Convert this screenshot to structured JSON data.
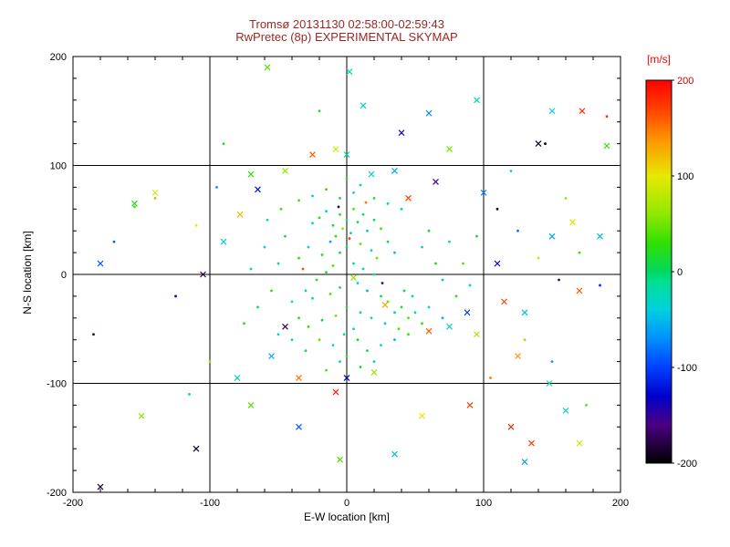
{
  "page": {
    "background": "#ffffff"
  },
  "chart_data": {
    "type": "scatter",
    "title_line1": "Tromsø 20131130 02:58:00-02:59:43",
    "title_line2": "RwPretec (8p) EXPERIMENTAL SKYMAP",
    "title_color": "#992822",
    "xlabel": "E-W location [km]",
    "ylabel": "N-S location [km]",
    "axis_color": "#000000",
    "grid_color": "#000000",
    "xlim": [
      -200,
      200
    ],
    "ylim": [
      -200,
      200
    ],
    "x_ticks": [
      -200,
      -100,
      0,
      100,
      200
    ],
    "y_ticks": [
      -200,
      -100,
      0,
      100,
      200
    ],
    "gridlines": [
      -100,
      0,
      100
    ],
    "colorbar": {
      "label": "[m/s]",
      "label_color": "#ff0000",
      "min": -200,
      "max": 200,
      "ticks": [
        200,
        100,
        0,
        -100,
        -200
      ],
      "tick_colors": [
        "#cc0000",
        "#000000",
        "#000000",
        "#000000",
        "#000000"
      ]
    },
    "colormap_stops": [
      [
        -200,
        "#000000"
      ],
      [
        -160,
        "#4b0082"
      ],
      [
        -130,
        "#0000cc"
      ],
      [
        -100,
        "#0040ff"
      ],
      [
        -70,
        "#0090ff"
      ],
      [
        -40,
        "#00d0e0"
      ],
      [
        -10,
        "#00e090"
      ],
      [
        0,
        "#00d860"
      ],
      [
        30,
        "#30e000"
      ],
      [
        60,
        "#90e800"
      ],
      [
        100,
        "#e8e800"
      ],
      [
        140,
        "#ff9000"
      ],
      [
        170,
        "#ff4000"
      ],
      [
        200,
        "#ff0000"
      ]
    ],
    "point_format": "[x_km, y_km, velocity_mps, marker(0=dot,1=cross)]",
    "points": [
      [
        -5,
        55,
        20,
        0
      ],
      [
        0,
        50,
        -10,
        0
      ],
      [
        5,
        60,
        40,
        0
      ],
      [
        -10,
        45,
        10,
        0
      ],
      [
        -15,
        58,
        -30,
        0
      ],
      [
        8,
        48,
        15,
        0
      ],
      [
        12,
        55,
        5,
        0
      ],
      [
        -3,
        42,
        60,
        0
      ],
      [
        3,
        38,
        -20,
        0
      ],
      [
        -8,
        35,
        30,
        0
      ],
      [
        15,
        40,
        -45,
        0
      ],
      [
        20,
        50,
        10,
        0
      ],
      [
        -20,
        52,
        25,
        0
      ],
      [
        -25,
        47,
        -15,
        0
      ],
      [
        25,
        42,
        35,
        0
      ],
      [
        -12,
        30,
        -60,
        0
      ],
      [
        10,
        28,
        45,
        0
      ],
      [
        0,
        25,
        -5,
        0
      ],
      [
        -5,
        20,
        15,
        0
      ],
      [
        18,
        22,
        -35,
        0
      ],
      [
        -18,
        18,
        20,
        0
      ],
      [
        22,
        15,
        50,
        0
      ],
      [
        -28,
        25,
        -25,
        0
      ],
      [
        30,
        30,
        10,
        0
      ],
      [
        35,
        20,
        -50,
        0
      ],
      [
        -35,
        15,
        30,
        0
      ],
      [
        5,
        10,
        -15,
        0
      ],
      [
        -10,
        8,
        40,
        0
      ],
      [
        12,
        5,
        -30,
        0
      ],
      [
        -15,
        2,
        10,
        0
      ],
      [
        20,
        0,
        -20,
        0
      ],
      [
        -22,
        -5,
        25,
        0
      ],
      [
        8,
        -8,
        -40,
        0
      ],
      [
        -5,
        -12,
        15,
        0
      ],
      [
        15,
        -15,
        -55,
        0
      ],
      [
        -12,
        -18,
        35,
        0
      ],
      [
        25,
        -20,
        5,
        0
      ],
      [
        -25,
        -22,
        -10,
        0
      ],
      [
        30,
        -25,
        45,
        0
      ],
      [
        -30,
        -15,
        -35,
        0
      ],
      [
        0,
        -30,
        20,
        0
      ],
      [
        10,
        -35,
        -25,
        0
      ],
      [
        -8,
        -38,
        50,
        0
      ],
      [
        18,
        -40,
        -15,
        0
      ],
      [
        -18,
        -42,
        10,
        0
      ],
      [
        28,
        -45,
        -45,
        0
      ],
      [
        -28,
        -48,
        30,
        0
      ],
      [
        35,
        -35,
        -5,
        0
      ],
      [
        -35,
        -40,
        20,
        0
      ],
      [
        5,
        -50,
        -30,
        0
      ],
      [
        40,
        -30,
        15,
        0
      ],
      [
        -40,
        -25,
        -20,
        0
      ],
      [
        45,
        -40,
        40,
        0
      ],
      [
        50,
        -35,
        -10,
        0
      ],
      [
        55,
        -45,
        25,
        0
      ],
      [
        60,
        -30,
        -40,
        0
      ],
      [
        42,
        -15,
        10,
        0
      ],
      [
        48,
        -20,
        -25,
        0
      ],
      [
        38,
        -50,
        35,
        0
      ],
      [
        -2,
        -55,
        -15,
        0
      ],
      [
        8,
        -60,
        20,
        0
      ],
      [
        -10,
        -65,
        -35,
        0
      ],
      [
        15,
        -70,
        10,
        0
      ],
      [
        -20,
        -60,
        45,
        0
      ],
      [
        25,
        -65,
        -20,
        0
      ],
      [
        -30,
        -70,
        15,
        0
      ],
      [
        35,
        -60,
        -50,
        0
      ],
      [
        45,
        -55,
        30,
        0
      ],
      [
        -40,
        -60,
        -10,
        0
      ],
      [
        0,
        -75,
        25,
        0
      ],
      [
        -5,
        -80,
        -30,
        0
      ],
      [
        10,
        -85,
        15,
        0
      ],
      [
        20,
        -80,
        -5,
        0
      ],
      [
        -15,
        -88,
        40,
        0
      ],
      [
        -5,
        70,
        10,
        0
      ],
      [
        5,
        75,
        -25,
        0
      ],
      [
        -15,
        78,
        30,
        0
      ],
      [
        10,
        82,
        -10,
        0
      ],
      [
        0,
        88,
        20,
        0
      ],
      [
        -25,
        72,
        -40,
        0
      ],
      [
        20,
        70,
        15,
        0
      ],
      [
        30,
        65,
        -20,
        0
      ],
      [
        -35,
        68,
        35,
        0
      ],
      [
        40,
        60,
        -15,
        0
      ],
      [
        2,
        33,
        170,
        0
      ],
      [
        -6,
        62,
        -175,
        0
      ],
      [
        14,
        66,
        150,
        0
      ],
      [
        26,
        -8,
        -160,
        0
      ],
      [
        -32,
        5,
        165,
        0
      ],
      [
        55,
        25,
        -30,
        0
      ],
      [
        65,
        10,
        20,
        0
      ],
      [
        70,
        -5,
        -45,
        0
      ],
      [
        60,
        40,
        10,
        0
      ],
      [
        75,
        30,
        -10,
        0
      ],
      [
        80,
        -20,
        25,
        0
      ],
      [
        70,
        -40,
        -55,
        0
      ],
      [
        85,
        10,
        40,
        0
      ],
      [
        90,
        -10,
        -25,
        0
      ],
      [
        95,
        35,
        15,
        0
      ],
      [
        -50,
        10,
        -20,
        0
      ],
      [
        -55,
        -15,
        30,
        0
      ],
      [
        -60,
        25,
        -40,
        0
      ],
      [
        -65,
        -30,
        10,
        0
      ],
      [
        -70,
        5,
        -10,
        0
      ],
      [
        -75,
        -45,
        20,
        0
      ],
      [
        -50,
        -55,
        -30,
        0
      ],
      [
        -45,
        35,
        15,
        0
      ],
      [
        -58,
        50,
        -25,
        0
      ],
      [
        -48,
        60,
        35,
        0
      ],
      [
        110,
        60,
        -190,
        0
      ],
      [
        125,
        40,
        -80,
        0
      ],
      [
        140,
        15,
        90,
        0
      ],
      [
        155,
        -5,
        -150,
        0
      ],
      [
        130,
        -60,
        120,
        0
      ],
      [
        150,
        -80,
        -60,
        0
      ],
      [
        170,
        20,
        30,
        0
      ],
      [
        185,
        -10,
        -110,
        0
      ],
      [
        160,
        70,
        60,
        0
      ],
      [
        190,
        145,
        180,
        0
      ],
      [
        145,
        120,
        -200,
        0
      ],
      [
        120,
        95,
        -40,
        0
      ],
      [
        105,
        -95,
        150,
        0
      ],
      [
        175,
        -120,
        40,
        0
      ],
      [
        -95,
        80,
        -70,
        0
      ],
      [
        -110,
        45,
        100,
        0
      ],
      [
        -125,
        -20,
        -130,
        0
      ],
      [
        -140,
        70,
        130,
        0
      ],
      [
        -155,
        62,
        40,
        0
      ],
      [
        -170,
        30,
        -90,
        0
      ],
      [
        -185,
        -55,
        -180,
        0
      ],
      [
        -100,
        -80,
        60,
        0
      ],
      [
        -115,
        -110,
        -40,
        0
      ],
      [
        -90,
        120,
        20,
        0
      ],
      [
        -20,
        150,
        20,
        0
      ],
      [
        -58,
        190,
        40,
        1
      ],
      [
        -25,
        110,
        160,
        1
      ],
      [
        35,
        95,
        -60,
        1
      ],
      [
        65,
        85,
        -150,
        1
      ],
      [
        -65,
        78,
        -120,
        1
      ],
      [
        -70,
        92,
        30,
        1
      ],
      [
        -140,
        75,
        90,
        1
      ],
      [
        -155,
        65,
        20,
        1
      ],
      [
        -180,
        10,
        -90,
        1
      ],
      [
        -105,
        0,
        -180,
        1
      ],
      [
        5,
        -3,
        60,
        1
      ],
      [
        -45,
        -48,
        -170,
        1
      ],
      [
        28,
        -28,
        130,
        1
      ],
      [
        60,
        -52,
        160,
        1
      ],
      [
        75,
        -48,
        -30,
        1
      ],
      [
        95,
        -55,
        70,
        1
      ],
      [
        88,
        -35,
        -100,
        1
      ],
      [
        115,
        -25,
        170,
        1
      ],
      [
        130,
        -35,
        -50,
        1
      ],
      [
        150,
        35,
        -60,
        1
      ],
      [
        165,
        48,
        90,
        1
      ],
      [
        140,
        120,
        -190,
        1
      ],
      [
        190,
        118,
        30,
        1
      ],
      [
        150,
        150,
        -40,
        1
      ],
      [
        95,
        160,
        -20,
        1
      ],
      [
        40,
        130,
        -140,
        1
      ],
      [
        75,
        115,
        50,
        1
      ],
      [
        172,
        150,
        180,
        1
      ],
      [
        60,
        148,
        -70,
        1
      ],
      [
        -80,
        -95,
        -20,
        1
      ],
      [
        -35,
        -95,
        150,
        1
      ],
      [
        -55,
        -75,
        -60,
        1
      ],
      [
        0,
        -95,
        -130,
        1
      ],
      [
        20,
        -90,
        60,
        1
      ],
      [
        -70,
        -120,
        40,
        1
      ],
      [
        -35,
        -140,
        -90,
        1
      ],
      [
        55,
        -130,
        100,
        1
      ],
      [
        90,
        -120,
        170,
        1
      ],
      [
        120,
        -140,
        180,
        1
      ],
      [
        135,
        -155,
        170,
        1
      ],
      [
        130,
        -172,
        -60,
        1
      ],
      [
        160,
        -125,
        -30,
        1
      ],
      [
        170,
        -155,
        90,
        1
      ],
      [
        -110,
        -160,
        -190,
        1
      ],
      [
        -150,
        -130,
        60,
        1
      ],
      [
        -180,
        -195,
        -185,
        1
      ],
      [
        35,
        -165,
        -50,
        1
      ],
      [
        -5,
        -170,
        40,
        1
      ],
      [
        148,
        -100,
        -20,
        1
      ],
      [
        185,
        35,
        -50,
        1
      ],
      [
        -90,
        30,
        -40,
        1
      ],
      [
        -78,
        55,
        120,
        1
      ],
      [
        110,
        10,
        -140,
        1
      ],
      [
        100,
        75,
        -80,
        1
      ],
      [
        125,
        -75,
        140,
        1
      ],
      [
        -45,
        95,
        60,
        1
      ],
      [
        18,
        92,
        -30,
        1
      ],
      [
        45,
        70,
        170,
        1
      ],
      [
        -8,
        115,
        90,
        1
      ],
      [
        170,
        -15,
        160,
        1
      ],
      [
        -8,
        -108,
        190,
        1
      ],
      [
        0,
        110,
        -15,
        1
      ],
      [
        12,
        155,
        -30,
        1
      ],
      [
        2,
        186,
        -20,
        1
      ]
    ]
  }
}
